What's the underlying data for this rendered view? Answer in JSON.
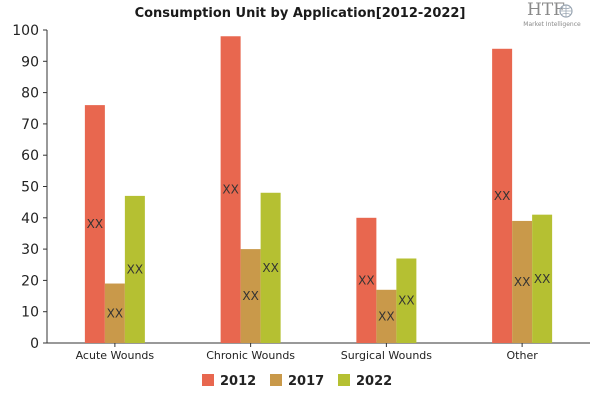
{
  "logo": {
    "text": "HTF",
    "subtext": "Market Intelligence"
  },
  "chart_data": {
    "type": "bar",
    "title": "Consumption Unit by  Application[2012-2022]",
    "xlabel": "",
    "ylabel": "",
    "ylim": [
      0,
      100
    ],
    "yticks": [
      0,
      10,
      20,
      30,
      40,
      50,
      60,
      70,
      80,
      90,
      100
    ],
    "categories": [
      "Acute Wounds",
      "Chronic Wounds",
      "Surgical Wounds",
      "Other"
    ],
    "series": [
      {
        "name": "2012",
        "color": "#e8674f",
        "values": [
          76,
          98,
          40,
          94
        ],
        "labels": [
          "XX",
          "XX",
          "XX",
          "XX"
        ]
      },
      {
        "name": "2017",
        "color": "#c9994a",
        "values": [
          19,
          30,
          17,
          39
        ],
        "labels": [
          "XX",
          "XX",
          "XX",
          "XX"
        ]
      },
      {
        "name": "2022",
        "color": "#b5c032",
        "values": [
          47,
          48,
          27,
          41
        ],
        "labels": [
          "XX",
          "XX",
          "XX",
          "XX"
        ]
      }
    ],
    "grid": false,
    "legend_position": "bottom"
  }
}
